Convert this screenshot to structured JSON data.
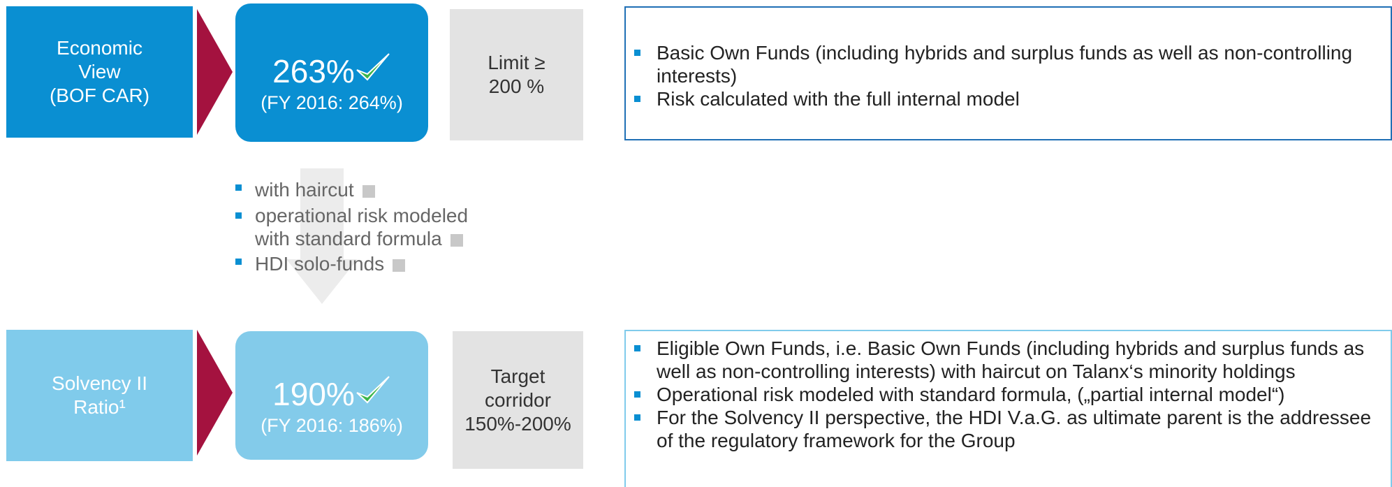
{
  "economic": {
    "label": [
      "Economic",
      "View",
      "(BOF CAR)"
    ],
    "ratio": "263%",
    "previous": "(FY 2016: 264%)",
    "limit": [
      "Limit ≥",
      "200 %"
    ],
    "bullets": [
      "Basic Own Funds (including hybrids and surplus funds as well as non-controlling interests)",
      "Risk calculated with the full internal model"
    ]
  },
  "adjustments": [
    "with haircut",
    "operational  risk modeled with standard formula",
    "HDI solo-funds"
  ],
  "solvency": {
    "label": [
      "Solvency II",
      "Ratio¹"
    ],
    "ratio": "190%",
    "previous": "(FY 2016: 186%)",
    "target": [
      "Target",
      "corridor",
      "150%-200%"
    ],
    "bullets": [
      "Eligible Own Funds, i.e. Basic Own Funds (including hybrids and surplus funds as well as non-controlling interests) with haircut on Talanx‘s minority holdings",
      "Operational risk modeled with standard formula, („partial internal model“)",
      "For the Solvency II perspective, the HDI V.a.G. as ultimate parent is the addressee of the regulatory framework for the Group"
    ]
  }
}
